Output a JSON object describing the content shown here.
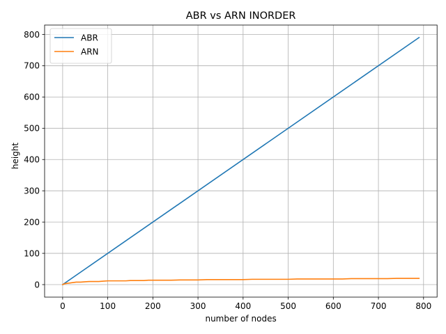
{
  "chart_data": {
    "type": "line",
    "title": "ABR vs ARN INORDER",
    "xlabel": "number of nodes",
    "ylabel": "height",
    "xlim": [
      -40,
      830
    ],
    "ylim": [
      -40,
      830
    ],
    "x_ticks": [
      0,
      100,
      200,
      300,
      400,
      500,
      600,
      700,
      800
    ],
    "y_ticks": [
      0,
      100,
      200,
      300,
      400,
      500,
      600,
      700,
      800
    ],
    "grid": true,
    "legend_position": "top-left",
    "series": [
      {
        "name": "ABR",
        "color": "#1f77b4",
        "x": [
          0,
          790
        ],
        "y": [
          0,
          790
        ]
      },
      {
        "name": "ARN",
        "color": "#ff7f0e",
        "x": [
          0,
          5,
          10,
          15,
          20,
          30,
          40,
          50,
          60,
          70,
          80,
          90,
          100,
          110,
          120,
          130,
          140,
          150,
          160,
          170,
          180,
          190,
          200,
          220,
          240,
          260,
          280,
          300,
          320,
          340,
          360,
          380,
          400,
          420,
          440,
          460,
          480,
          500,
          520,
          540,
          560,
          580,
          600,
          620,
          640,
          660,
          680,
          700,
          720,
          740,
          760,
          780,
          790
        ],
        "y": [
          0,
          3,
          4,
          5,
          6,
          8,
          8,
          9,
          10,
          10,
          10,
          11,
          12,
          12,
          12,
          12,
          12,
          13,
          13,
          13,
          13,
          14,
          14,
          14,
          14,
          15,
          15,
          15,
          16,
          16,
          16,
          16,
          16,
          17,
          17,
          17,
          17,
          17,
          18,
          18,
          18,
          18,
          18,
          18,
          19,
          19,
          19,
          19,
          19,
          20,
          20,
          20,
          20
        ]
      }
    ]
  }
}
